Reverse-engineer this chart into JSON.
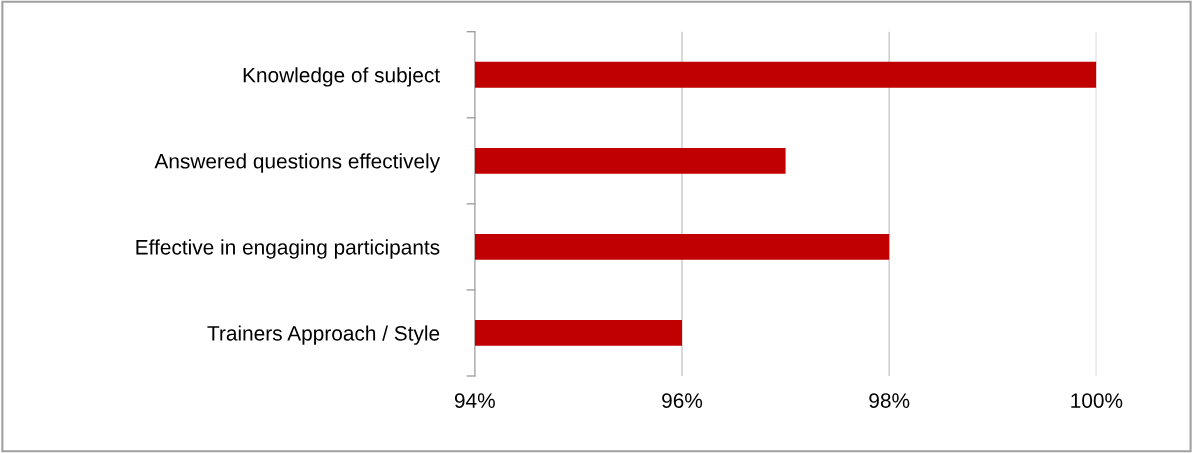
{
  "chart_data": {
    "type": "bar",
    "orientation": "horizontal",
    "categories": [
      "Knowledge of subject",
      "Answered questions effectively",
      "Effective in engaging participants",
      "Trainers Approach / Style"
    ],
    "values": [
      100,
      97,
      98,
      96
    ],
    "color": "#c00000",
    "xlim": [
      94,
      100
    ],
    "xticks": [
      {
        "value": 94,
        "label": "94%"
      },
      {
        "value": 96,
        "label": "96%"
      },
      {
        "value": 98,
        "label": "98%"
      },
      {
        "value": 100,
        "label": "100%"
      }
    ],
    "grid": "x",
    "legend": false
  }
}
